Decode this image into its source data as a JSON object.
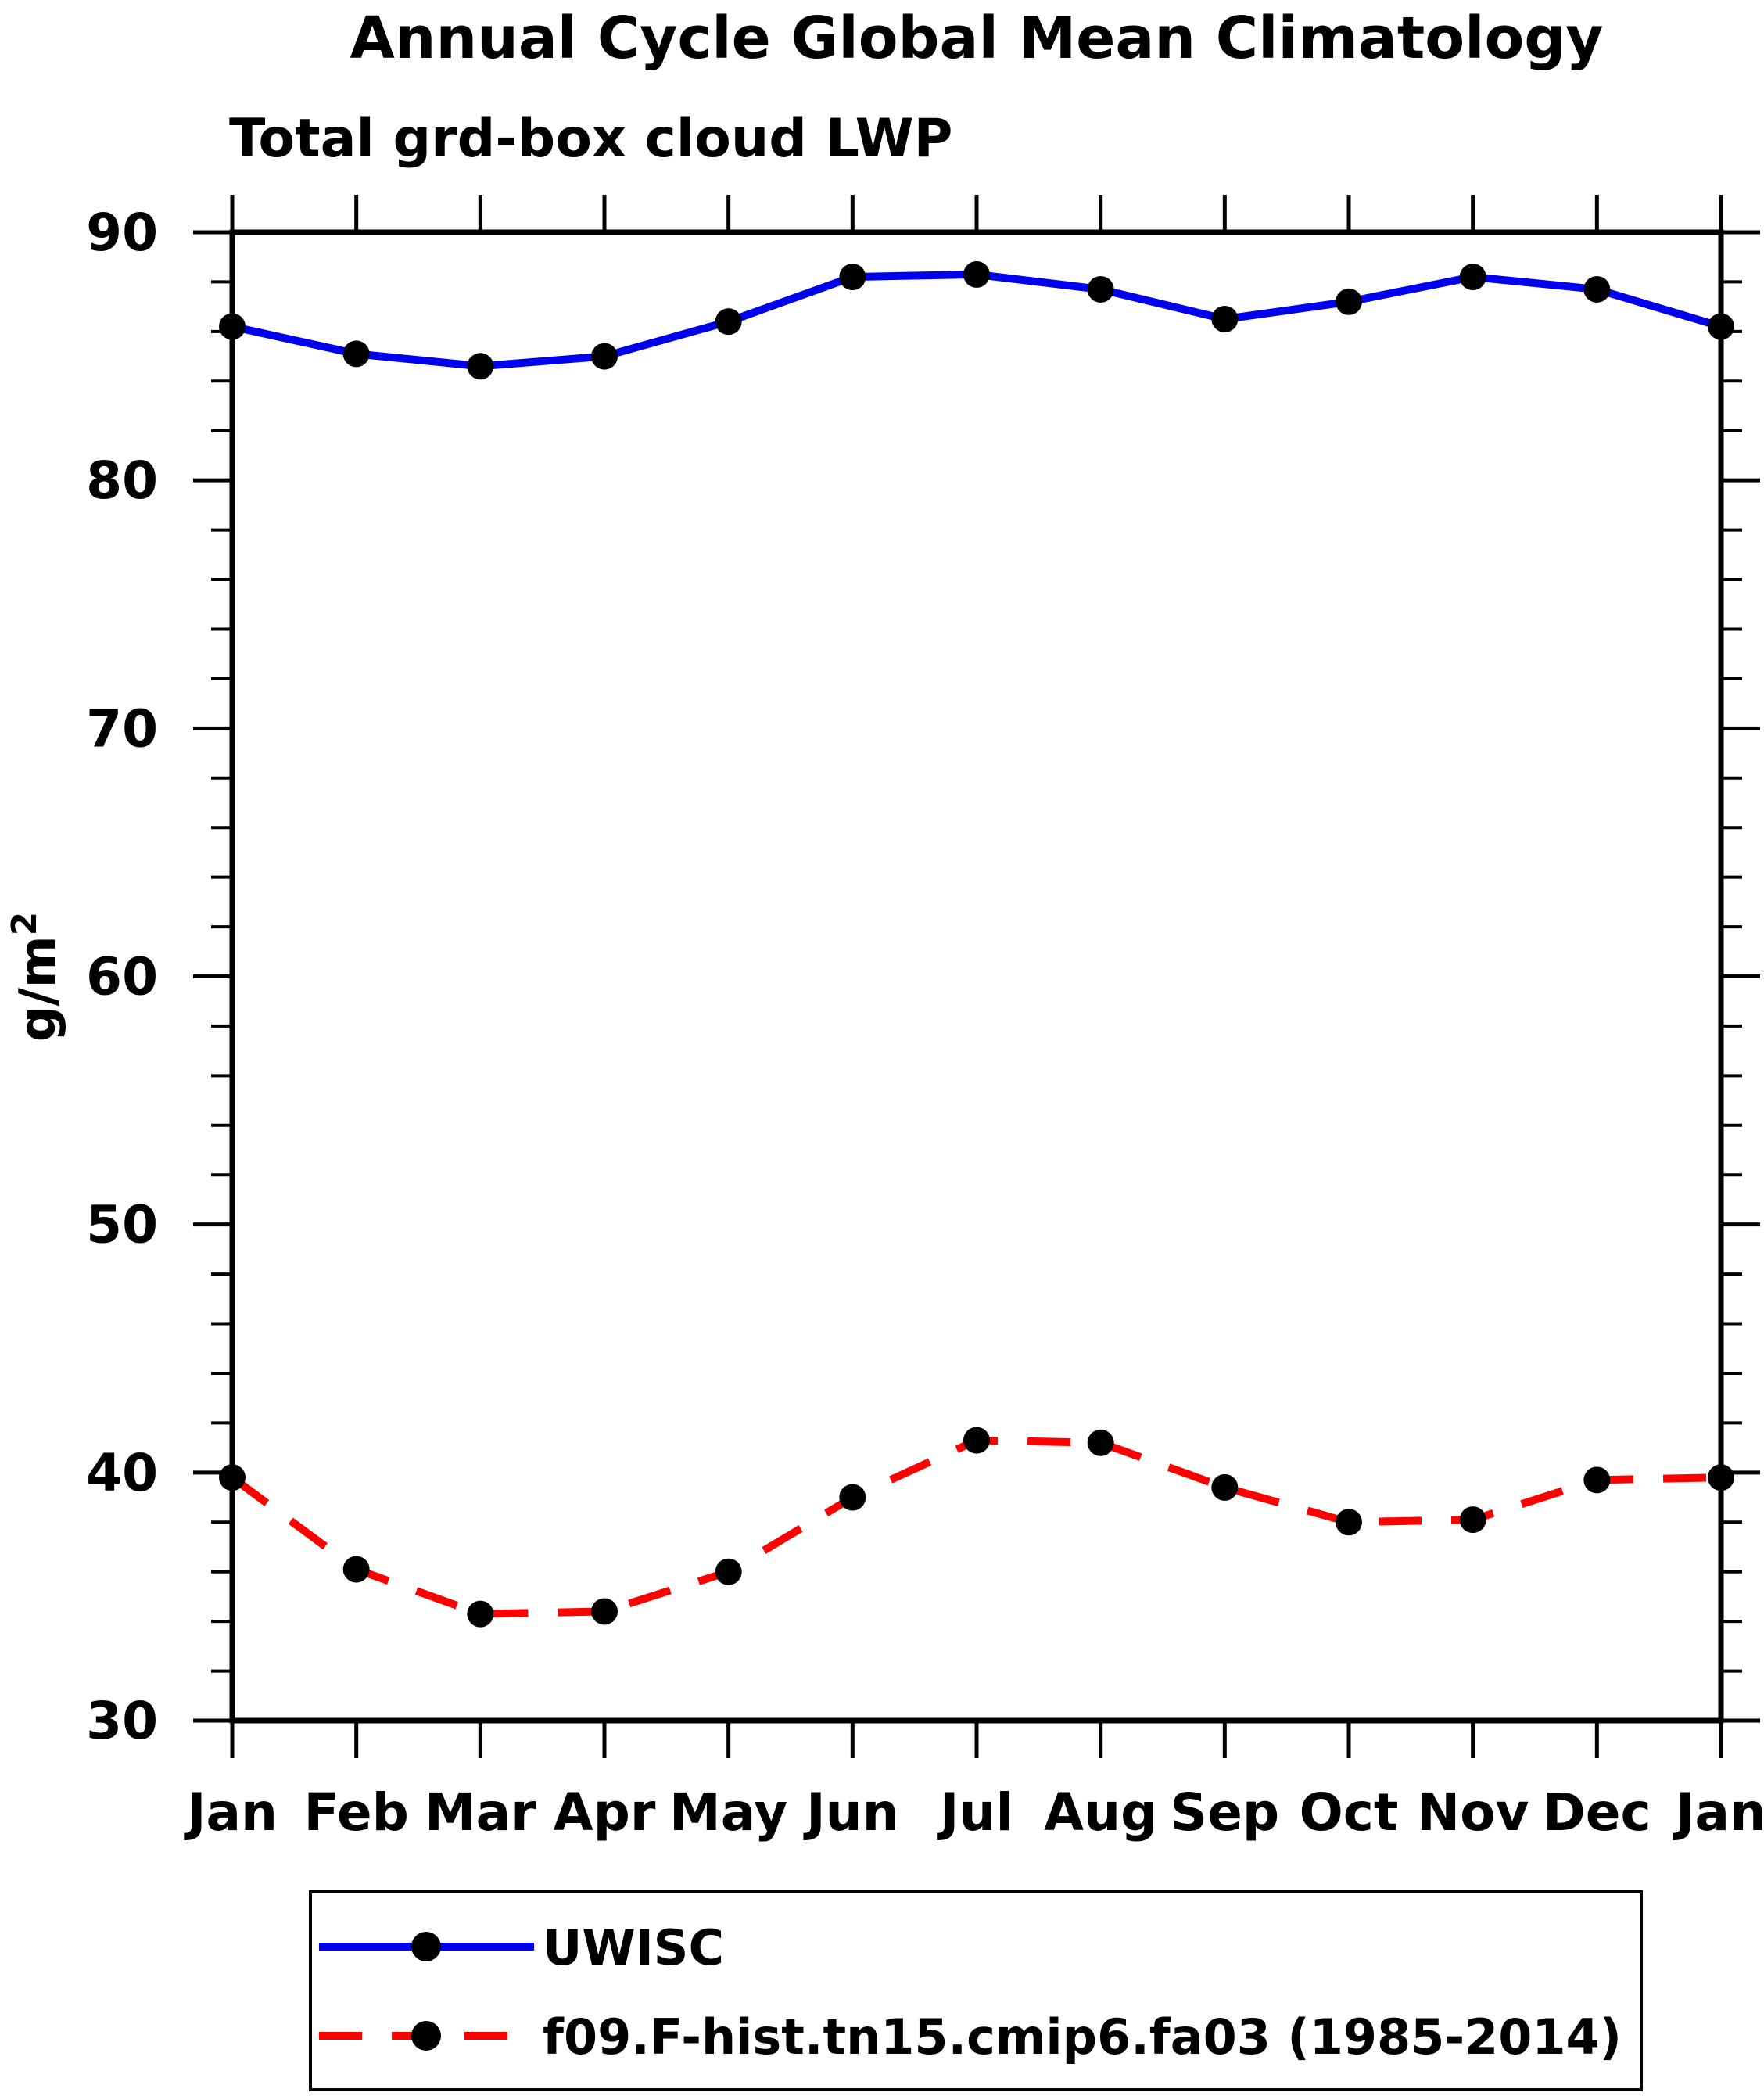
{
  "title": "Annual Cycle Global Mean Climatology",
  "subtitle": "Total grd-box cloud LWP",
  "y_axis": {
    "label_base": "g/m",
    "label_exponent": "2",
    "major_ticks": [
      30,
      40,
      50,
      60,
      70,
      80,
      90
    ],
    "minor_tick_interval": 2
  },
  "x_axis": {
    "tick_labels": [
      "Jan",
      "Feb",
      "Mar",
      "Apr",
      "May",
      "Jun",
      "Jul",
      "Aug",
      "Sep",
      "Oct",
      "Nov",
      "Dec",
      "Jan"
    ]
  },
  "colors": {
    "uwisc_line": "#0000ee",
    "model_line": "#ff0000",
    "marker": "#000000",
    "frame": "#000000"
  },
  "chart_data": {
    "type": "line",
    "x": [
      "Jan",
      "Feb",
      "Mar",
      "Apr",
      "May",
      "Jun",
      "Jul",
      "Aug",
      "Sep",
      "Oct",
      "Nov",
      "Dec",
      "Jan"
    ],
    "series": [
      {
        "name": "UWISC",
        "color": "#0000ee",
        "line_style": "solid",
        "marker": "filled-circle",
        "marker_color": "#000000",
        "values": [
          86.2,
          85.1,
          84.6,
          85.0,
          86.4,
          88.2,
          88.3,
          87.7,
          86.5,
          87.2,
          88.2,
          87.7,
          86.2
        ]
      },
      {
        "name": "f09.F-hist.tn15.cmip6.fa03 (1985-2014)",
        "color": "#ff0000",
        "line_style": "dashed",
        "marker": "filled-circle",
        "marker_color": "#000000",
        "values": [
          39.8,
          36.1,
          34.3,
          34.4,
          36.0,
          39.0,
          41.3,
          41.2,
          39.4,
          38.0,
          38.1,
          39.7,
          39.8
        ]
      }
    ],
    "title": "Annual Cycle Global Mean Climatology",
    "subtitle": "Total grd-box cloud LWP",
    "xlabel": "",
    "ylabel": "g/m2",
    "ylim": [
      30,
      90
    ],
    "grid": false,
    "legend_position": "bottom"
  }
}
